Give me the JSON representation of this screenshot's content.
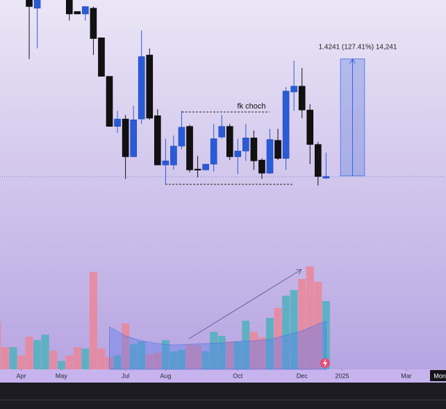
{
  "chart_data": {
    "type": "candlestick",
    "annotation": "fk choch",
    "measure_label": "1.4241 (127.41%) 14,241",
    "xlim": [
      -3.64,
      51.95
    ],
    "ylim": [
      -1.24,
      3.26
    ],
    "xticks": [
      {
        "value": -1,
        "label": "Apr"
      },
      {
        "value": 4,
        "label": "May"
      },
      {
        "value": 12,
        "label": "Jul"
      },
      {
        "value": 17,
        "label": "Aug"
      },
      {
        "value": 26,
        "label": "Oct"
      },
      {
        "value": 34,
        "label": "Dec"
      },
      {
        "value": 39,
        "label": "2025"
      },
      {
        "value": 47,
        "label": "Mar"
      }
    ],
    "crosshair": {
      "value": 51,
      "label": "Mon"
    },
    "up_color": "#2a5bd7",
    "down_color": "#111111",
    "candles": {
      "x": [
        0,
        1,
        5,
        6,
        7,
        8,
        9,
        10,
        11,
        12,
        13,
        14,
        15,
        16,
        17,
        18,
        19,
        20,
        21,
        22,
        23,
        24,
        25,
        26,
        27,
        28,
        29,
        30,
        31,
        32,
        33,
        34,
        35,
        36,
        37
      ],
      "open": [
        3.26,
        3.16,
        3.26,
        3.12,
        3.09,
        3.16,
        2.8,
        2.33,
        1.72,
        1.81,
        1.35,
        1.81,
        2.59,
        1.85,
        1.25,
        1.25,
        1.48,
        1.72,
        1.2,
        1.19,
        1.26,
        1.59,
        1.72,
        1.35,
        1.42,
        1.58,
        1.31,
        1.15,
        1.55,
        1.33,
        2.14,
        2.21,
        1.92,
        1.5,
        1.09
      ],
      "high": [
        3.26,
        3.26,
        3.26,
        3.12,
        3.18,
        3.18,
        2.8,
        2.33,
        1.91,
        1.86,
        1.97,
        2.89,
        2.67,
        1.93,
        1.57,
        1.61,
        1.91,
        1.74,
        1.36,
        1.26,
        1.75,
        1.86,
        1.75,
        1.57,
        1.75,
        1.67,
        1.33,
        1.69,
        1.69,
        2.2,
        2.52,
        2.43,
        1.99,
        1.53,
        1.4
      ],
      "low": [
        2.54,
        2.67,
        3.01,
        3.09,
        3.01,
        2.59,
        2.33,
        1.72,
        1.64,
        1.08,
        1.35,
        1.75,
        1.8,
        1.25,
        1.02,
        1.19,
        1.44,
        1.16,
        1.1,
        1.19,
        1.17,
        1.57,
        1.31,
        1.14,
        1.3,
        1.19,
        1.08,
        1.14,
        1.31,
        1.19,
        1.91,
        1.82,
        1.26,
        1.0,
        1.08
      ],
      "close": [
        3.18,
        3.26,
        3.09,
        3.09,
        3.18,
        2.79,
        2.33,
        1.72,
        1.81,
        1.35,
        1.8,
        2.57,
        1.82,
        1.25,
        1.3,
        1.48,
        1.71,
        1.19,
        1.19,
        1.26,
        1.57,
        1.72,
        1.35,
        1.42,
        1.58,
        1.3,
        1.15,
        1.56,
        1.33,
        2.15,
        2.21,
        1.92,
        1.5,
        1.11,
        1.11
      ]
    },
    "measure": {
      "from": 1.118,
      "to": 2.542,
      "x": [
        38.8,
        41.8
      ],
      "color": "#5b7fe0"
    },
    "volume": {
      "ylim": [
        0,
        150
      ],
      "x": [
        -4,
        -3,
        -2,
        -1,
        0,
        1,
        2,
        3,
        4,
        5,
        6,
        7,
        8,
        9,
        10,
        11,
        12,
        13,
        14,
        15,
        16,
        17,
        18,
        19,
        20,
        21,
        22,
        23,
        24,
        25,
        26,
        27,
        28,
        29,
        30,
        31,
        32,
        33,
        34,
        35,
        36,
        37
      ],
      "values": [
        68,
        32,
        32,
        20,
        47,
        42,
        50,
        27,
        12,
        20,
        32,
        30,
        140,
        30,
        18,
        20,
        66,
        36,
        40,
        22,
        24,
        42,
        26,
        28,
        36,
        35,
        26,
        54,
        48,
        40,
        40,
        70,
        54,
        46,
        74,
        88,
        106,
        114,
        130,
        148,
        126,
        98
      ],
      "colors": [
        "#e8889c",
        "#e8889c",
        "#55b0bf",
        "#e8889c",
        "#e8889c",
        "#55b0bf",
        "#55b0bf",
        "#e8889c",
        "#55b0bf",
        "#e8889c",
        "#e8889c",
        "#55b0bf",
        "#e8889c",
        "#e8889c",
        "#e8889c",
        "#55b0bf",
        "#e8889c",
        "#55b0bf",
        "#55b0bf",
        "#e8889c",
        "#e8889c",
        "#55b0bf",
        "#55b0bf",
        "#55b0bf",
        "#e8889c",
        "#e8889c",
        "#55b0bf",
        "#55b0bf",
        "#55b0bf",
        "#e8889c",
        "#55b0bf",
        "#55b0bf",
        "#e8889c",
        "#e8889c",
        "#55b0bf",
        "#e8889c",
        "#55b0bf",
        "#55b0bf",
        "#e8889c",
        "#e8889c",
        "#e8889c",
        "#55b0bf"
      ]
    },
    "volume_ma": {
      "x": [
        10,
        12,
        14,
        16,
        18,
        20,
        22,
        24,
        26,
        28,
        30,
        32,
        34,
        36,
        37
      ],
      "values": [
        61,
        48,
        41,
        37,
        35,
        36,
        37,
        38,
        40,
        41,
        43,
        49,
        55,
        65,
        69
      ],
      "color": "rgba(90,125,235,0.4)"
    }
  }
}
